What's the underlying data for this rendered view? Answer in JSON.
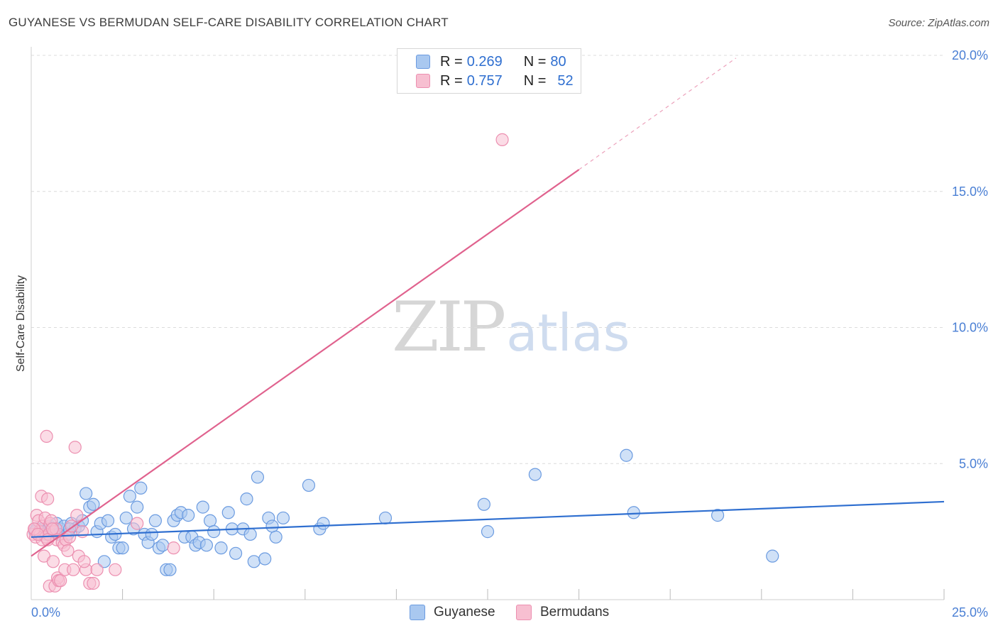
{
  "title": "GUYANESE VS BERMUDAN SELF-CARE DISABILITY CORRELATION CHART",
  "source": "Source: ZipAtlas.com",
  "watermark": {
    "zip": "ZIP",
    "atlas": "atlas"
  },
  "legend": [
    {
      "r_label": "R = ",
      "r_value": "0.269",
      "n_label": "N = ",
      "n_value": "80",
      "color": "#a9c8f0",
      "border": "#6b9be0"
    },
    {
      "r_label": "R = ",
      "r_value": "0.757",
      "n_label": "N = ",
      "n_value": "52",
      "color": "#f7bfd1",
      "border": "#ec8fb0"
    }
  ],
  "bottom_legend": [
    "Guyanese",
    "Bermudans"
  ],
  "chart_data": {
    "type": "scatter",
    "title": "GUYANESE VS BERMUDAN SELF-CARE DISABILITY CORRELATION CHART",
    "xlabel": "",
    "ylabel": "Self-Care Disability",
    "xlim": [
      0,
      25
    ],
    "ylim": [
      0,
      20
    ],
    "x_ticks": [
      "0.0%",
      "25.0%"
    ],
    "y_ticks": [
      {
        "value": 5,
        "label": "5.0%"
      },
      {
        "value": 10,
        "label": "10.0%"
      },
      {
        "value": 15,
        "label": "15.0%"
      },
      {
        "value": 20,
        "label": "20.0%"
      }
    ],
    "grid": true,
    "legend_placement": "top-center",
    "series": [
      {
        "name": "Guyanese",
        "color": "#6b9be0",
        "fill": "#a9c8f0",
        "trend_color": "#2f6fd0",
        "trend": {
          "x": [
            0.0,
            25.0
          ],
          "y": [
            2.3,
            3.6
          ]
        },
        "points": [
          [
            0.1,
            2.5
          ],
          [
            0.2,
            2.4
          ],
          [
            0.3,
            2.6
          ],
          [
            0.4,
            2.4
          ],
          [
            0.5,
            2.7
          ],
          [
            0.6,
            2.5
          ],
          [
            0.7,
            2.8
          ],
          [
            0.8,
            2.6
          ],
          [
            0.9,
            2.7
          ],
          [
            1.0,
            2.4
          ],
          [
            1.1,
            2.8
          ],
          [
            1.2,
            2.6
          ],
          [
            1.3,
            2.7
          ],
          [
            1.4,
            2.9
          ],
          [
            1.5,
            3.9
          ],
          [
            1.6,
            3.4
          ],
          [
            1.7,
            3.5
          ],
          [
            1.8,
            2.5
          ],
          [
            1.9,
            2.8
          ],
          [
            2.0,
            1.4
          ],
          [
            2.1,
            2.9
          ],
          [
            2.2,
            2.3
          ],
          [
            2.3,
            2.4
          ],
          [
            2.4,
            1.9
          ],
          [
            2.5,
            1.9
          ],
          [
            2.6,
            3.0
          ],
          [
            2.7,
            3.8
          ],
          [
            2.8,
            2.6
          ],
          [
            2.9,
            3.4
          ],
          [
            3.0,
            4.1
          ],
          [
            3.1,
            2.4
          ],
          [
            3.2,
            2.1
          ],
          [
            3.3,
            2.4
          ],
          [
            3.4,
            2.9
          ],
          [
            3.5,
            1.9
          ],
          [
            3.6,
            2.0
          ],
          [
            3.7,
            1.1
          ],
          [
            3.8,
            1.1
          ],
          [
            3.9,
            2.9
          ],
          [
            4.0,
            3.1
          ],
          [
            4.1,
            3.2
          ],
          [
            4.2,
            2.3
          ],
          [
            4.3,
            3.1
          ],
          [
            4.4,
            2.3
          ],
          [
            4.5,
            2.0
          ],
          [
            4.6,
            2.1
          ],
          [
            4.7,
            3.4
          ],
          [
            4.8,
            2.0
          ],
          [
            4.9,
            2.9
          ],
          [
            5.0,
            2.5
          ],
          [
            5.2,
            1.9
          ],
          [
            5.4,
            3.2
          ],
          [
            5.5,
            2.6
          ],
          [
            5.6,
            1.7
          ],
          [
            5.8,
            2.6
          ],
          [
            5.9,
            3.7
          ],
          [
            6.0,
            2.4
          ],
          [
            6.1,
            1.4
          ],
          [
            6.2,
            4.5
          ],
          [
            6.4,
            1.5
          ],
          [
            6.5,
            3.0
          ],
          [
            6.6,
            2.7
          ],
          [
            6.7,
            2.3
          ],
          [
            6.9,
            3.0
          ],
          [
            7.6,
            4.2
          ],
          [
            7.9,
            2.6
          ],
          [
            8.0,
            2.8
          ],
          [
            9.7,
            3.0
          ],
          [
            12.4,
            3.5
          ],
          [
            12.5,
            2.5
          ],
          [
            13.8,
            4.6
          ],
          [
            16.3,
            5.3
          ],
          [
            16.5,
            3.2
          ],
          [
            18.8,
            3.1
          ],
          [
            20.3,
            1.6
          ],
          [
            0.15,
            2.6
          ],
          [
            0.35,
            2.5
          ],
          [
            0.55,
            2.6
          ],
          [
            0.75,
            2.4
          ],
          [
            1.05,
            2.6
          ]
        ]
      },
      {
        "name": "Bermudans",
        "color": "#ec8fb0",
        "fill": "#f7bfd1",
        "trend_color": "#e0628e",
        "trend": {
          "x": [
            0.0,
            15.0
          ],
          "y": [
            1.6,
            15.8
          ]
        },
        "trend_dashed": {
          "x": [
            15.0,
            19.3
          ],
          "y": [
            15.8,
            19.9
          ]
        },
        "points": [
          [
            0.05,
            2.4
          ],
          [
            0.1,
            2.6
          ],
          [
            0.12,
            2.3
          ],
          [
            0.15,
            3.1
          ],
          [
            0.2,
            2.9
          ],
          [
            0.22,
            2.5
          ],
          [
            0.25,
            2.4
          ],
          [
            0.28,
            3.8
          ],
          [
            0.3,
            2.2
          ],
          [
            0.32,
            2.7
          ],
          [
            0.35,
            1.6
          ],
          [
            0.38,
            3.0
          ],
          [
            0.4,
            2.3
          ],
          [
            0.42,
            6.0
          ],
          [
            0.45,
            3.7
          ],
          [
            0.48,
            2.4
          ],
          [
            0.5,
            0.5
          ],
          [
            0.52,
            2.8
          ],
          [
            0.55,
            2.9
          ],
          [
            0.6,
            1.4
          ],
          [
            0.62,
            2.5
          ],
          [
            0.65,
            0.5
          ],
          [
            0.68,
            2.6
          ],
          [
            0.7,
            2.2
          ],
          [
            0.72,
            0.8
          ],
          [
            0.75,
            0.7
          ],
          [
            0.8,
            0.7
          ],
          [
            0.85,
            2.1
          ],
          [
            0.9,
            2.0
          ],
          [
            0.92,
            1.1
          ],
          [
            0.95,
            2.2
          ],
          [
            1.0,
            1.8
          ],
          [
            1.05,
            2.3
          ],
          [
            1.1,
            2.7
          ],
          [
            1.15,
            1.1
          ],
          [
            1.2,
            5.6
          ],
          [
            1.25,
            3.1
          ],
          [
            1.3,
            1.6
          ],
          [
            1.4,
            2.5
          ],
          [
            1.5,
            1.1
          ],
          [
            1.6,
            0.6
          ],
          [
            1.7,
            0.6
          ],
          [
            1.8,
            1.1
          ],
          [
            2.3,
            1.1
          ],
          [
            2.9,
            2.8
          ],
          [
            3.9,
            1.9
          ],
          [
            12.9,
            16.9
          ],
          [
            0.08,
            2.6
          ],
          [
            0.18,
            2.4
          ],
          [
            0.45,
            2.2
          ],
          [
            0.58,
            2.6
          ],
          [
            1.45,
            1.4
          ]
        ]
      }
    ]
  }
}
